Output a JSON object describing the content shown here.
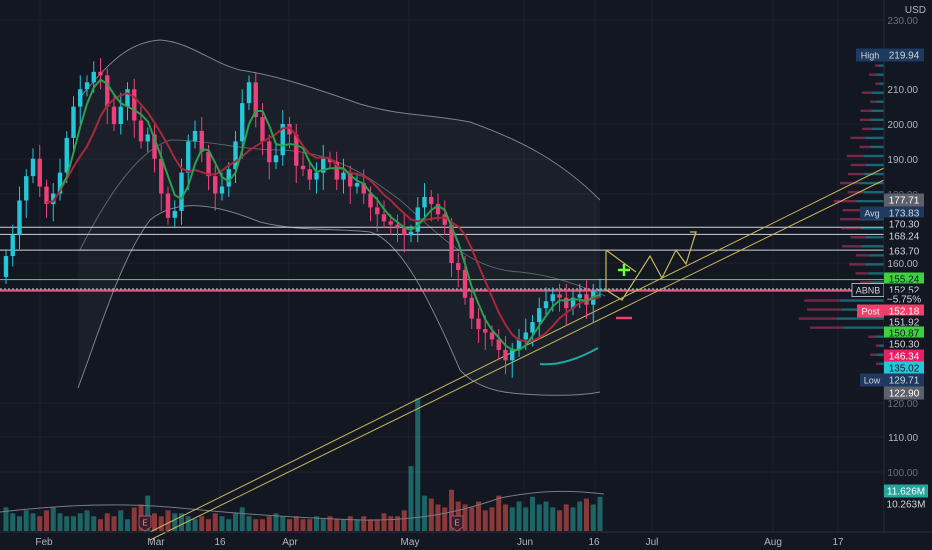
{
  "header": {
    "currency": "USD"
  },
  "price_axis": {
    "ticks": [
      "230.00",
      "210.00",
      "200.00",
      "190.00",
      "180.00",
      "160.00",
      "120.00",
      "110.00",
      "100.00"
    ],
    "partial_ticks": [
      "230.00",
      "180.00",
      "120.00",
      "100.00"
    ],
    "badges": {
      "high": {
        "label": "High",
        "value": "219.94"
      },
      "avg": {
        "label": "Avg",
        "value": "173.83"
      },
      "low": {
        "label": "Low",
        "value": "129.71"
      },
      "last": {
        "label": "ABNB",
        "value": "152.52",
        "change": "−5.75%"
      },
      "post": {
        "label": "Post",
        "value": "152.18"
      },
      "level_177": "177.71",
      "level_170": "170.30",
      "level_168": "168.24",
      "level_163": "163.70",
      "level_155": "155.24",
      "level_151": "151.92",
      "level_150b": "150.87",
      "level_150": "150.30",
      "level_146": "146.34",
      "level_135": "135.02",
      "level_122": "122.90",
      "vol_a": "11.626M",
      "vol_b": "10.263M"
    }
  },
  "time_axis": {
    "labels": [
      "Feb",
      "Mar",
      "16",
      "Apr",
      "May",
      "Jun",
      "16",
      "Jul",
      "Aug",
      "17"
    ]
  },
  "event_markers": [
    "E",
    "E"
  ],
  "colors": {
    "background": "#131722",
    "up": "#26c6da",
    "down": "#ec407a",
    "ma_fast": "#2e9e4f",
    "ma_slow": "#a8283a",
    "green_line": "#3dd13d",
    "post_line": "#f23e6a",
    "trend": "#c9b85a",
    "band": "#7c8190"
  },
  "chart_data": {
    "type": "candlestick",
    "symbol": "ABNB",
    "currency": "USD",
    "x_labels": [
      "Feb",
      "Mar",
      "16",
      "Apr",
      "May",
      "Jun",
      "16",
      "Jul",
      "Aug",
      "17"
    ],
    "y_ticks": [
      230,
      210,
      200,
      190,
      180,
      160,
      120,
      110,
      100
    ],
    "ylim": [
      95,
      233
    ],
    "price_lines": [
      177.71,
      170.3,
      168.24,
      163.7,
      155.24,
      152.52,
      152.18
    ],
    "closes": [
      162,
      168,
      178,
      185,
      190,
      182,
      177,
      180,
      186,
      196,
      205,
      210,
      212,
      215,
      214,
      205,
      200,
      205,
      210,
      201,
      195,
      197,
      190,
      180,
      173,
      175,
      186,
      195,
      198,
      192,
      185,
      180,
      182,
      187,
      195,
      206,
      212,
      202,
      195,
      189,
      191,
      200,
      197,
      188,
      187,
      184,
      186,
      190,
      189,
      184,
      186,
      182,
      183,
      180,
      176,
      174,
      172,
      171,
      170,
      168,
      169,
      176,
      179,
      177,
      174,
      171,
      160,
      158,
      150,
      144,
      141,
      140,
      138,
      135,
      132,
      135,
      138,
      140,
      143,
      147,
      149,
      151,
      150,
      147,
      150,
      151,
      148,
      152,
      152.5
    ],
    "volume_units": "M",
    "volumes": [
      8,
      6,
      5,
      7,
      6,
      5,
      7,
      8,
      6,
      5,
      5,
      6,
      7,
      5,
      4,
      6,
      5,
      7,
      4,
      8,
      9,
      12,
      6,
      5,
      7,
      6,
      6,
      5,
      4,
      5,
      4,
      6,
      5,
      4,
      6,
      8,
      5,
      4,
      4,
      5,
      6,
      5,
      4,
      5,
      4,
      4,
      5,
      4,
      5,
      4,
      4,
      5,
      4,
      5,
      4,
      4,
      6,
      5,
      5,
      7,
      22,
      45,
      12,
      11,
      9,
      8,
      14,
      10,
      9,
      8,
      10,
      7,
      8,
      12,
      9,
      8,
      10,
      8,
      11.6,
      9,
      10,
      8,
      7,
      9,
      8,
      10,
      11,
      9,
      11.6
    ]
  }
}
